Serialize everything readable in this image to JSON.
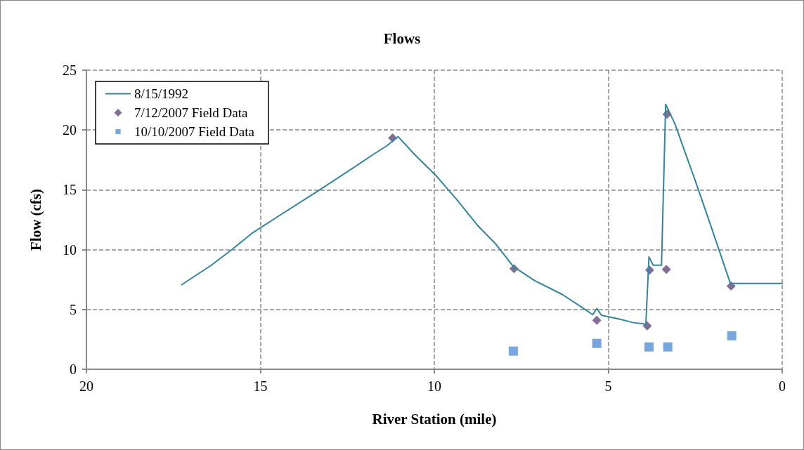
{
  "chart_data": {
    "type": "line",
    "title": "Flows",
    "xlabel": "River Station (mile)",
    "ylabel": "Flow (cfs)",
    "xlim": [
      20,
      0
    ],
    "xticks": [
      20,
      15,
      10,
      5,
      0
    ],
    "ylim": [
      0,
      25
    ],
    "yticks": [
      0,
      5,
      10,
      15,
      20,
      25
    ],
    "grid": true,
    "legend": "top left",
    "series": [
      {
        "name": "8/15/1992",
        "color": "#31859c",
        "marker": "none",
        "x": [
          17.26,
          16.41,
          15.8,
          15.26,
          14.39,
          13.38,
          12.37,
          11.77,
          11.36,
          11.04,
          10.56,
          9.95,
          9.34,
          8.74,
          8.23,
          7.73,
          7.12,
          6.32,
          5.71,
          5.45,
          5.33,
          5.19,
          4.7,
          4.3,
          3.99,
          3.92,
          3.83,
          3.71,
          3.47,
          3.35,
          3.09,
          2.48,
          2.18,
          1.49,
          0
        ],
        "values": [
          7.07,
          8.7,
          10.05,
          11.33,
          12.97,
          14.84,
          16.76,
          17.93,
          18.69,
          19.45,
          17.93,
          16.18,
          14.14,
          11.97,
          10.46,
          8.59,
          7.42,
          6.25,
          5.08,
          4.56,
          5.08,
          4.5,
          4.21,
          3.91,
          3.8,
          3.74,
          9.4,
          8.7,
          8.7,
          22.14,
          20.56,
          15.6,
          13.08,
          7.18,
          7.18
        ]
      },
      {
        "name": "7/12/2007 Field Data",
        "type": "scatter",
        "color": "#604a7b",
        "marker": "diamond",
        "x": [
          11.2,
          7.71,
          5.33,
          3.88,
          3.81,
          3.33,
          3.31,
          1.47
        ],
        "values": [
          19.33,
          8.41,
          4.09,
          3.62,
          8.29,
          8.35,
          21.32,
          6.95
        ]
      },
      {
        "name": "10/10/2007 Field Data",
        "type": "scatter",
        "color": "#558ed5",
        "marker": "square",
        "x": [
          7.73,
          5.33,
          3.83,
          3.29,
          1.45
        ],
        "values": [
          1.52,
          2.16,
          1.87,
          1.87,
          2.8
        ]
      }
    ]
  }
}
